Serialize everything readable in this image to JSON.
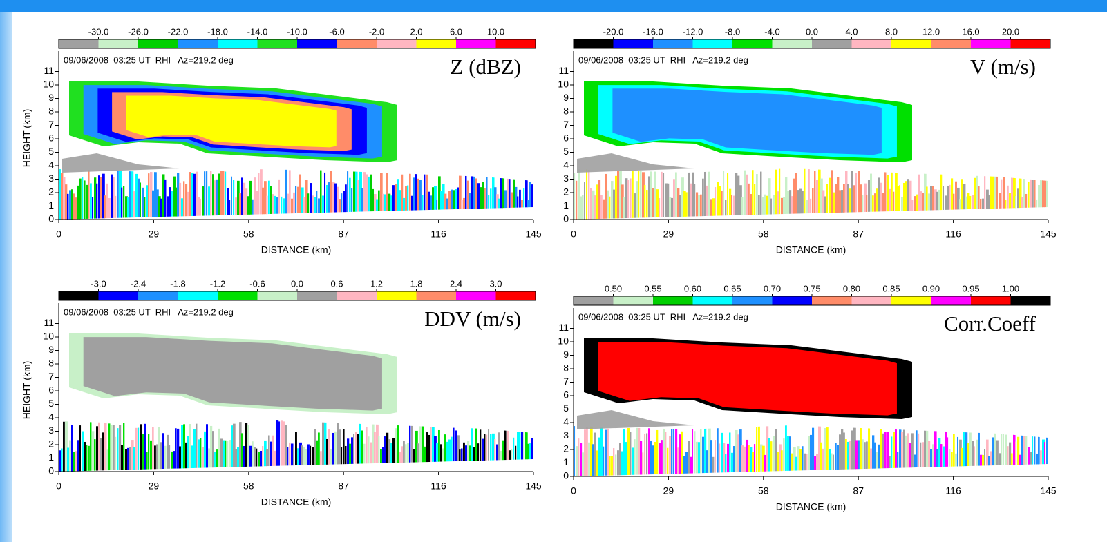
{
  "chart_data": [
    {
      "type": "rhi",
      "title": "Z (dBZ)",
      "subtitle": "09/06/2008  03:25 UT  RHI   Az=219.2 deg",
      "xlabel": "DISTANCE (km)",
      "ylabel": "HEIGHT (km)",
      "xlim": [
        0,
        145
      ],
      "xticks": [
        0,
        29,
        58,
        87,
        116,
        145
      ],
      "ylim": [
        0,
        12
      ],
      "yticks": [
        0,
        1,
        2,
        3,
        4,
        5,
        6,
        7,
        8,
        9,
        10,
        11
      ],
      "colorbar": {
        "colors": [
          "#a0a0a0",
          "#c8f0c8",
          "#00d000",
          "#1e90ff",
          "#00ffff",
          "#20e020",
          "#0000ff",
          "#ff8c69",
          "#ffb6c1",
          "#ffff00",
          "#ff00ff",
          "#ff0000"
        ],
        "ticks": [
          {
            "value": -30,
            "label": "-30.0"
          },
          {
            "value": -26,
            "label": "-26.0"
          },
          {
            "value": -22,
            "label": "-22.0"
          },
          {
            "value": -18,
            "label": "-18.0"
          },
          {
            "value": -14,
            "label": "-14.0"
          },
          {
            "value": -10,
            "label": "-10.0"
          },
          {
            "value": -6,
            "label": "-6.0"
          },
          {
            "value": -2,
            "label": "-2.0"
          },
          {
            "value": 2,
            "label": "2.0"
          },
          {
            "value": 6,
            "label": "6.0"
          },
          {
            "value": 10,
            "label": "10.0"
          }
        ]
      }
    },
    {
      "type": "rhi",
      "title": "V (m/s)",
      "subtitle": "09/06/2008  03:25 UT  RHI   Az=219.2 deg",
      "xlabel": "DISTANCE (km)",
      "xlim": [
        0,
        145
      ],
      "xticks": [
        0,
        29,
        58,
        87,
        116,
        145
      ],
      "ylim": [
        0,
        12
      ],
      "yticks": [
        0,
        1,
        2,
        3,
        4,
        5,
        6,
        7,
        8,
        9,
        10,
        11
      ],
      "colorbar": {
        "colors": [
          "#000000",
          "#0000ff",
          "#1e90ff",
          "#00ffff",
          "#00e000",
          "#c8f0c8",
          "#a0a0a0",
          "#ffb6c1",
          "#ffff00",
          "#ff8c69",
          "#ff00ff",
          "#ff0000"
        ],
        "ticks": [
          {
            "value": -20,
            "label": "-20.0"
          },
          {
            "value": -16,
            "label": "-16.0"
          },
          {
            "value": -12,
            "label": "-12.0"
          },
          {
            "value": -8,
            "label": "-8.0"
          },
          {
            "value": -4,
            "label": "-4.0"
          },
          {
            "value": 0,
            "label": "0.0"
          },
          {
            "value": 4,
            "label": "4.0"
          },
          {
            "value": 8,
            "label": "8.0"
          },
          {
            "value": 12,
            "label": "12.0"
          },
          {
            "value": 16,
            "label": "16.0"
          },
          {
            "value": 20,
            "label": "20.0"
          }
        ]
      }
    },
    {
      "type": "rhi",
      "title": "DDV (m/s)",
      "subtitle": "09/06/2008  03:25 UT  RHI   Az=219.2 deg",
      "xlabel": "DISTANCE (km)",
      "ylabel": "HEIGHT (km)",
      "xlim": [
        0,
        145
      ],
      "xticks": [
        0,
        29,
        58,
        87,
        116,
        145
      ],
      "ylim": [
        0,
        12
      ],
      "yticks": [
        0,
        1,
        2,
        3,
        4,
        5,
        6,
        7,
        8,
        9,
        10,
        11
      ],
      "colorbar": {
        "colors": [
          "#000000",
          "#0000ff",
          "#1e90ff",
          "#00ffff",
          "#00e000",
          "#c8f0c8",
          "#a0a0a0",
          "#ffb6c1",
          "#ffff00",
          "#ff8c69",
          "#ff00ff",
          "#ff0000"
        ],
        "ticks": [
          {
            "value": -3,
            "label": "-3.0"
          },
          {
            "value": -2.4,
            "label": "-2.4"
          },
          {
            "value": -1.8,
            "label": "-1.8"
          },
          {
            "value": -1.2,
            "label": "-1.2"
          },
          {
            "value": -0.6,
            "label": "-0.6"
          },
          {
            "value": 0,
            "label": "0.0"
          },
          {
            "value": 0.6,
            "label": "0.6"
          },
          {
            "value": 1.2,
            "label": "1.2"
          },
          {
            "value": 1.8,
            "label": "1.8"
          },
          {
            "value": 2.4,
            "label": "2.4"
          },
          {
            "value": 3,
            "label": "3.0"
          }
        ]
      }
    },
    {
      "type": "rhi",
      "title": "Corr.Coeff",
      "subtitle": "09/06/2008  03:25 UT  RHI   Az=219.2 deg",
      "xlabel": "DISTANCE (km)",
      "xlim": [
        0,
        145
      ],
      "xticks": [
        0,
        29,
        58,
        87,
        116,
        145
      ],
      "ylim": [
        0,
        12
      ],
      "yticks": [
        0,
        1,
        2,
        3,
        4,
        5,
        6,
        7,
        8,
        9,
        10,
        11
      ],
      "colorbar": {
        "colors": [
          "#a0a0a0",
          "#c8f0c8",
          "#00d000",
          "#00ffff",
          "#1e90ff",
          "#0000ff",
          "#ff8c69",
          "#ffb6c1",
          "#ffff00",
          "#ff00ff",
          "#ff0000",
          "#000000"
        ],
        "ticks": [
          {
            "value": 0.5,
            "label": "0.50"
          },
          {
            "value": 0.55,
            "label": "0.55"
          },
          {
            "value": 0.6,
            "label": "0.60"
          },
          {
            "value": 0.65,
            "label": "0.65"
          },
          {
            "value": 0.7,
            "label": "0.70"
          },
          {
            "value": 0.75,
            "label": "0.75"
          },
          {
            "value": 0.8,
            "label": "0.80"
          },
          {
            "value": 0.85,
            "label": "0.85"
          },
          {
            "value": 0.9,
            "label": "0.90"
          },
          {
            "value": 0.95,
            "label": "0.95"
          },
          {
            "value": 1,
            "label": "1.00"
          }
        ]
      }
    }
  ]
}
